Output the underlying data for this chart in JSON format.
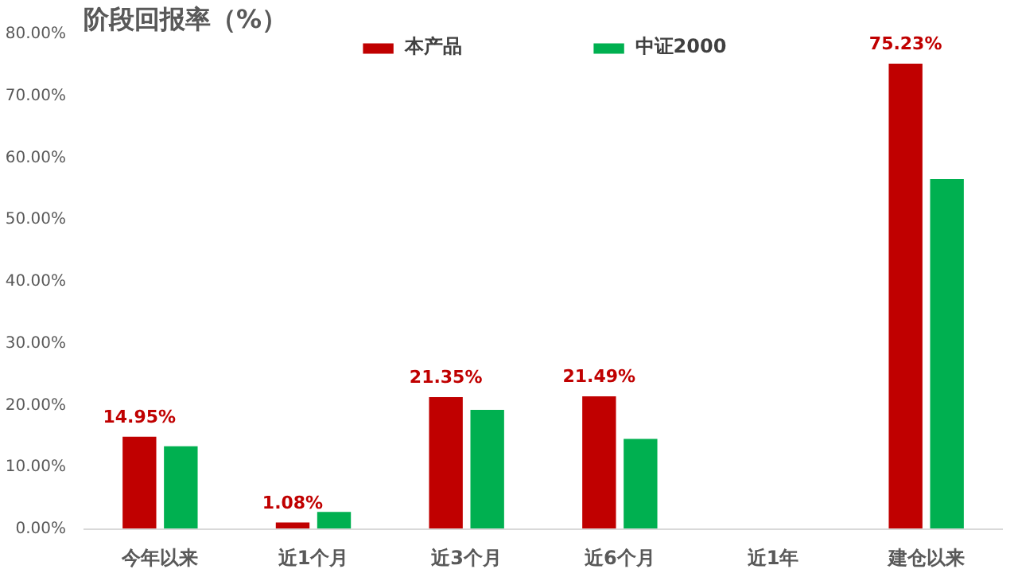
{
  "chart_data": {
    "type": "bar",
    "title": "阶段回报率（%）",
    "categories": [
      "今年以来",
      "近1个月",
      "近3个月",
      "近6个月",
      "近1年",
      "建仓以来"
    ],
    "series": [
      {
        "name": "本产品",
        "color": "#c00000",
        "values": [
          14.95,
          1.08,
          21.35,
          21.49,
          null,
          75.23
        ],
        "value_labels": [
          "14.95%",
          "1.08%",
          "21.35%",
          "21.49%",
          null,
          "75.23%"
        ]
      },
      {
        "name": "中证2000",
        "color": "#00b050",
        "values": [
          13.4,
          2.8,
          19.3,
          14.6,
          null,
          56.6
        ]
      }
    ],
    "ylim": [
      0,
      80
    ],
    "yticks": [
      {
        "value": 0,
        "label": "0.00%"
      },
      {
        "value": 10,
        "label": "10.00%"
      },
      {
        "value": 20,
        "label": "20.00%"
      },
      {
        "value": 30,
        "label": "30.00%"
      },
      {
        "value": 40,
        "label": "40.00%"
      },
      {
        "value": 50,
        "label": "50.00%"
      },
      {
        "value": 60,
        "label": "60.00%"
      },
      {
        "value": 70,
        "label": "70.00%"
      },
      {
        "value": 80,
        "label": "80.00%"
      }
    ],
    "grid": false,
    "legend": "top"
  }
}
